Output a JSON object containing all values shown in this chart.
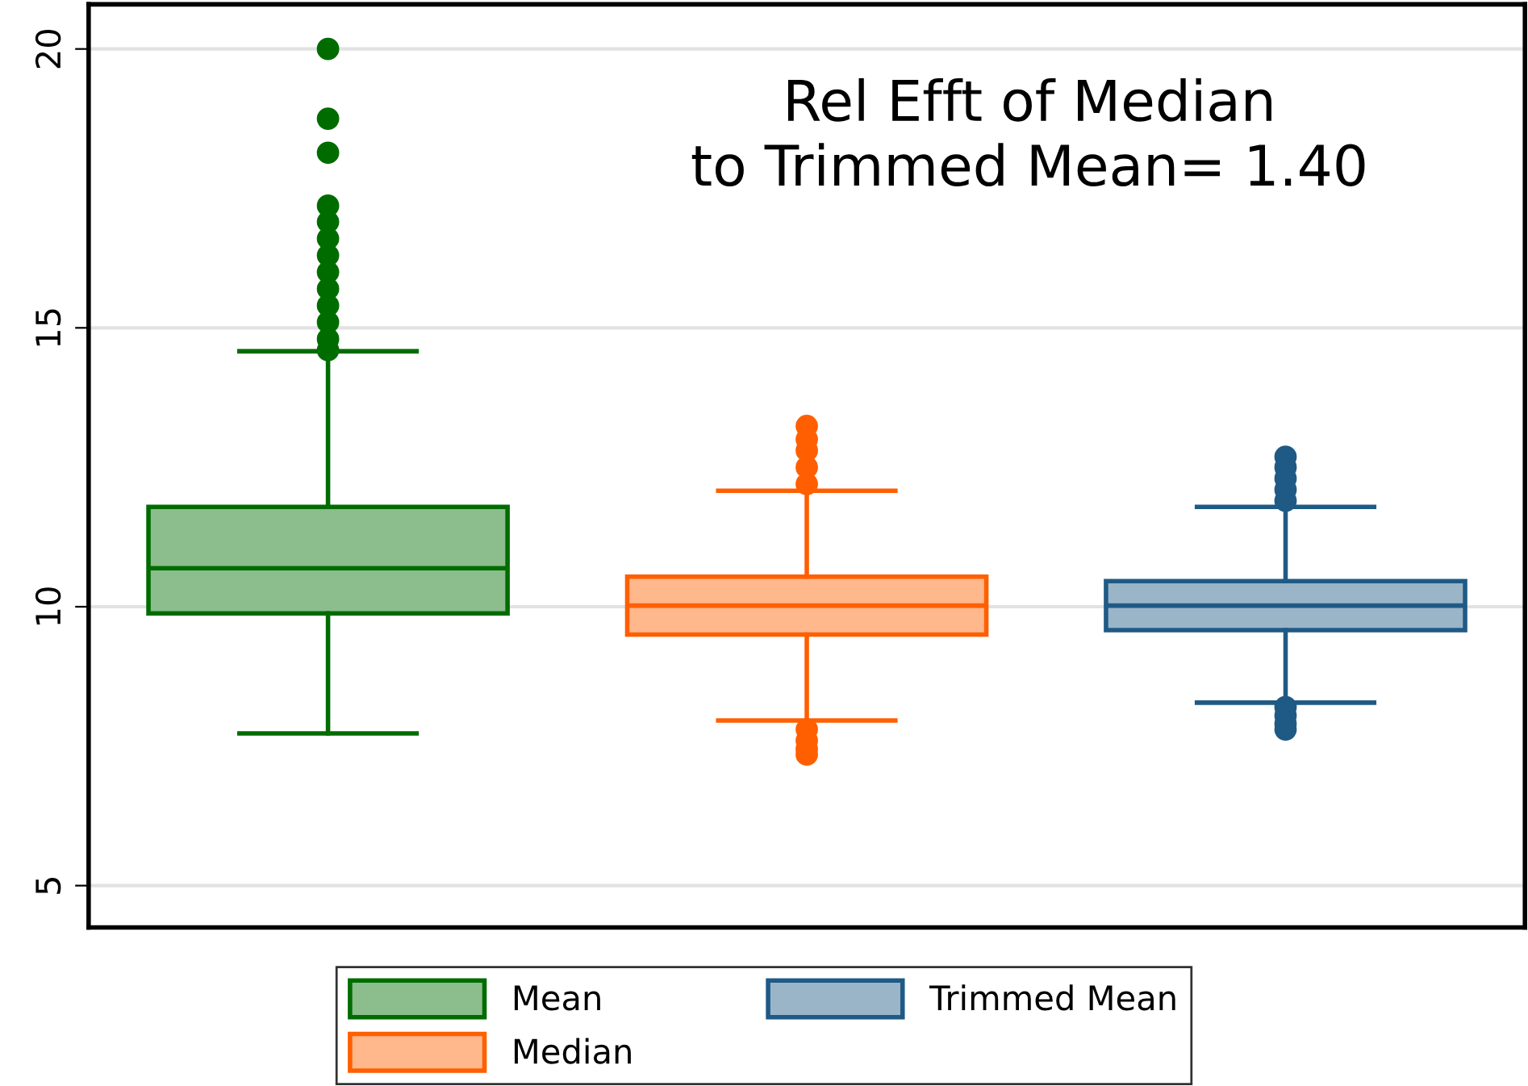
{
  "chart_data": {
    "type": "box",
    "categories": [
      null,
      null,
      null
    ],
    "series": [
      {
        "name": "Mean",
        "color": "#006c00",
        "boxes": [
          {
            "low": 7.73,
            "q1": 9.88,
            "median": 10.69,
            "q3": 11.79,
            "high": 14.58,
            "outliers": [
              20.0,
              18.75,
              18.14,
              17.19,
              16.9,
              16.6,
              16.3,
              16.0,
              15.7,
              15.4,
              15.1,
              14.8,
              14.6
            ]
          },
          null,
          null
        ]
      },
      {
        "name": "Median",
        "color": "#ff5f00",
        "boxes": [
          null,
          {
            "low": 7.96,
            "q1": 9.5,
            "median": 10.02,
            "q3": 10.54,
            "high": 12.08,
            "outliers": [
              13.24,
              13.0,
              12.8,
              12.5,
              12.2,
              7.8,
              7.6,
              7.45,
              7.35
            ]
          },
          null
        ]
      },
      {
        "name": "Trimmed Mean",
        "color": "#1f5a85",
        "boxes": [
          null,
          null,
          {
            "low": 8.28,
            "q1": 9.58,
            "median": 10.02,
            "q3": 10.46,
            "high": 11.79,
            "outliers": [
              12.69,
              12.5,
              12.3,
              12.1,
              11.9,
              8.2,
              8.05,
              7.9,
              7.8
            ]
          }
        ]
      }
    ],
    "ylim": [
      4.25,
      20.8
    ],
    "yticks": [
      5,
      10,
      15,
      20
    ],
    "grid": "y",
    "legend": "bottom",
    "annotations": [
      "Rel Efft of Median\nto Trimmed Mean= 1.40"
    ]
  }
}
